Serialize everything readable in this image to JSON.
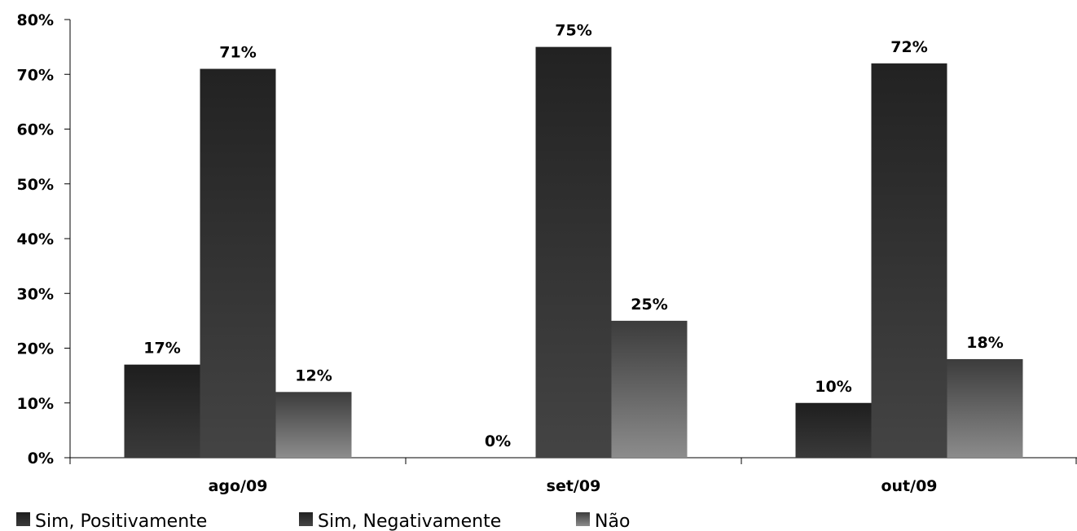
{
  "chart_data": {
    "type": "bar",
    "categories": [
      "ago/09",
      "set/09",
      "out/09"
    ],
    "series": [
      {
        "name": "Sim, Positivamente",
        "values": [
          17,
          0,
          10
        ],
        "labels": [
          "17%",
          "0%",
          "10%"
        ],
        "colors": [
          "#1e1e1e",
          "#3a3a3a"
        ]
      },
      {
        "name": "Sim, Negativamente",
        "values": [
          71,
          75,
          72
        ],
        "labels": [
          "71%",
          "75%",
          "72%"
        ],
        "colors": [
          "#222222",
          "#444444"
        ]
      },
      {
        "name": "Não",
        "values": [
          12,
          25,
          18
        ],
        "labels": [
          "12%",
          "25%",
          "18%"
        ],
        "colors": [
          "#3c3c3c",
          "#8c8c8c"
        ]
      }
    ],
    "y_ticks": [
      "0%",
      "10%",
      "20%",
      "30%",
      "40%",
      "50%",
      "60%",
      "70%",
      "80%"
    ],
    "ylim": [
      0,
      80
    ],
    "grid": false,
    "legend_position": "bottom-left"
  }
}
